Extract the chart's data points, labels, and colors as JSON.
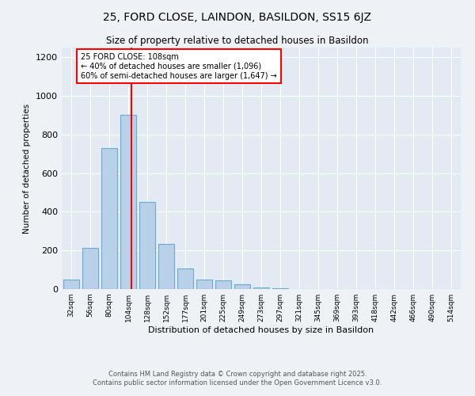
{
  "title1": "25, FORD CLOSE, LAINDON, BASILDON, SS15 6JZ",
  "title2": "Size of property relative to detached houses in Basildon",
  "xlabel": "Distribution of detached houses by size in Basildon",
  "ylabel": "Number of detached properties",
  "categories": [
    "32sqm",
    "56sqm",
    "80sqm",
    "104sqm",
    "128sqm",
    "152sqm",
    "177sqm",
    "201sqm",
    "225sqm",
    "249sqm",
    "273sqm",
    "297sqm",
    "321sqm",
    "345sqm",
    "369sqm",
    "393sqm",
    "418sqm",
    "442sqm",
    "466sqm",
    "490sqm",
    "514sqm"
  ],
  "values": [
    50,
    215,
    730,
    900,
    450,
    235,
    105,
    50,
    45,
    25,
    10,
    5,
    0,
    0,
    0,
    0,
    0,
    0,
    0,
    0,
    0
  ],
  "bar_color": "#b8d0e8",
  "bar_edgecolor": "#6aabd2",
  "vline_color": "red",
  "annotation_title": "25 FORD CLOSE: 108sqm",
  "annotation_line1": "← 40% of detached houses are smaller (1,096)",
  "annotation_line2": "60% of semi-detached houses are larger (1,647) →",
  "annotation_box_color": "red",
  "ylim": [
    0,
    1250
  ],
  "yticks": [
    0,
    200,
    400,
    600,
    800,
    1000,
    1200
  ],
  "footnote1": "Contains HM Land Registry data © Crown copyright and database right 2025.",
  "footnote2": "Contains public sector information licensed under the Open Government Licence v3.0.",
  "bg_color": "#eef2f7",
  "plot_bg_color": "#e2eaf3"
}
